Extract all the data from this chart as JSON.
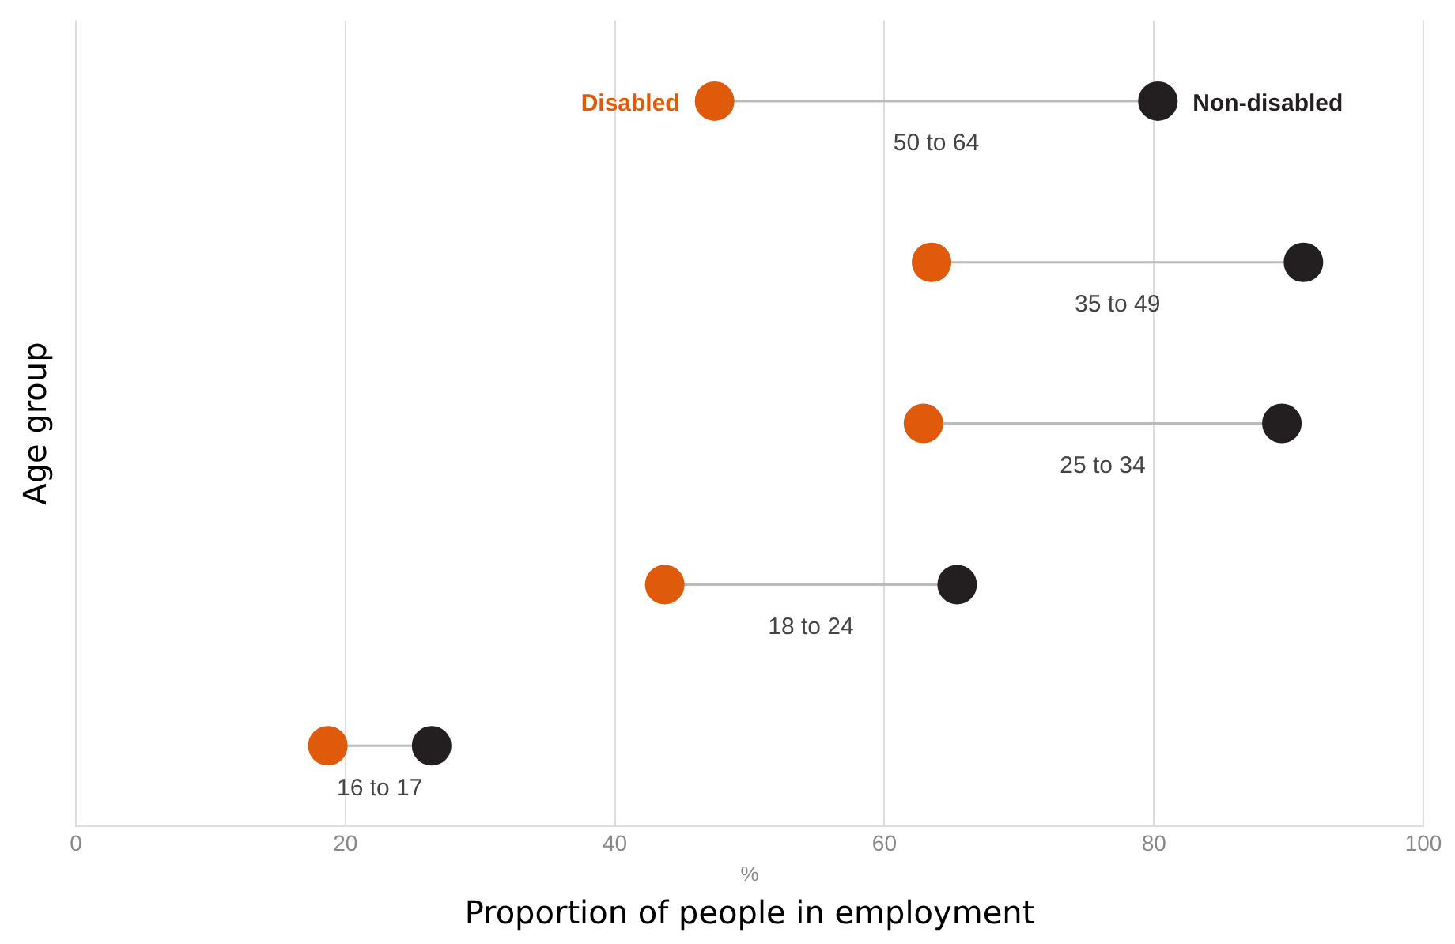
{
  "chart_data": {
    "type": "scatter",
    "orientation": "horizontal",
    "ylabel": "Age group",
    "xlabel": "%",
    "annotations": [
      "Proportion of people in employment"
    ],
    "categories": [
      "50 to 64",
      "35 to 49",
      "25 to 34",
      "18 to 24",
      "16 to 17"
    ],
    "series": [
      {
        "name": "Disabled",
        "color": "#e05a0c",
        "values": [
          47.4,
          63.5,
          62.9,
          43.7,
          18.7
        ]
      },
      {
        "name": "Non-disabled",
        "color": "#231f20",
        "values": [
          80.3,
          91.1,
          89.5,
          65.4,
          26.4
        ]
      }
    ],
    "xlim": [
      0,
      100
    ],
    "xticks": [
      0,
      20,
      40,
      60,
      80,
      100
    ],
    "grid": "x",
    "marker": "circle",
    "legend": "top"
  }
}
